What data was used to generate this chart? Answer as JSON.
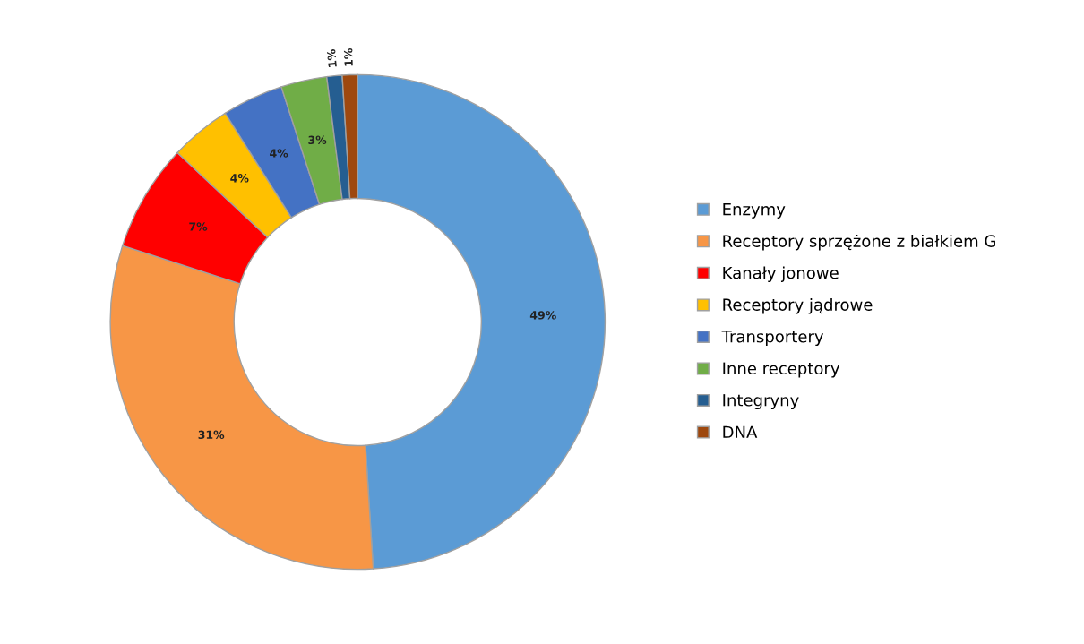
{
  "chart_data": {
    "type": "donut",
    "categories": [
      "Enzymy",
      "Receptory sprzężone z białkiem G",
      "Kanały jonowe",
      "Receptory jądrowe",
      "Transportery",
      "Inne receptory",
      "Integryny",
      "DNA"
    ],
    "values": [
      49,
      31,
      7,
      4,
      4,
      3,
      1,
      1
    ],
    "colors": [
      "#5b9bd5",
      "#f79646",
      "#ff0000",
      "#ffc000",
      "#4472c4",
      "#70ad47",
      "#255e91",
      "#9e480e"
    ],
    "value_labels": [
      "49%",
      "31%",
      "7%",
      "4%",
      "4%",
      "3%",
      "1%",
      "1%"
    ],
    "legend": "right"
  }
}
